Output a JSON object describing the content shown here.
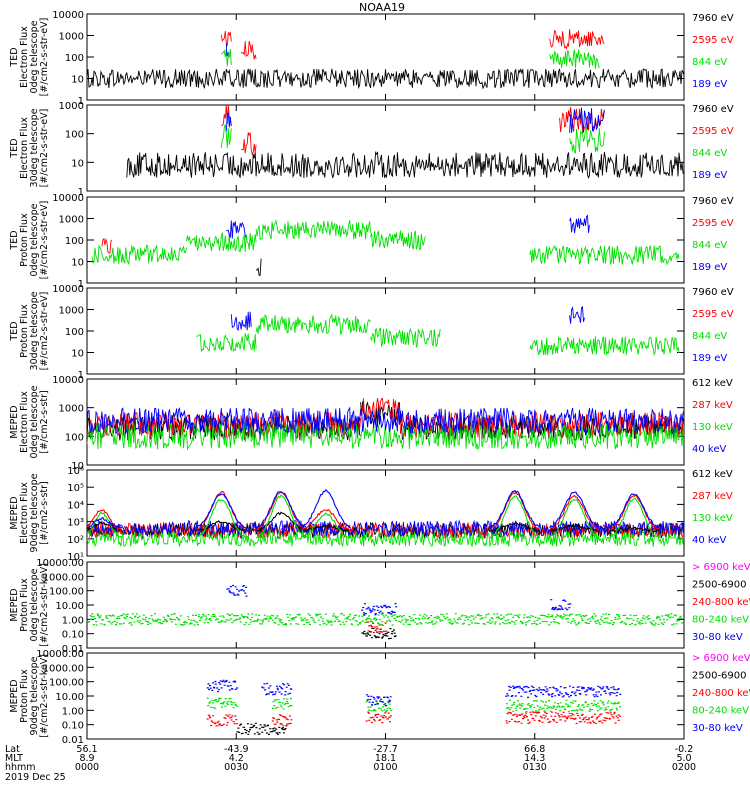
{
  "title": "NOAA19",
  "colors": {
    "black": "#000000",
    "red": "#ff0000",
    "green": "#00e000",
    "blue": "#0000ff",
    "magenta": "#ff00ff"
  },
  "xaxis": {
    "row_labels": [
      "Lat",
      "MLT",
      "hhmm"
    ],
    "date": "2019 Dec 25",
    "ticks": [
      {
        "lat": "56.1",
        "mlt": "8.9",
        "time": "0000"
      },
      {
        "lat": "-43.9",
        "mlt": "4.2",
        "time": "0030"
      },
      {
        "lat": "-27.7",
        "mlt": "18.1",
        "time": "0100"
      },
      {
        "lat": "66.8",
        "mlt": "14.3",
        "time": "0130"
      },
      {
        "lat": "-0.2",
        "mlt": "5.0",
        "time": "0200"
      }
    ],
    "time_range_minutes": [
      0,
      120
    ]
  },
  "chart_data": [
    {
      "type": "line",
      "ylabel": [
        "TED",
        "Electron Flux",
        "0deg telescope",
        "[#/cm2-s-str-eV]"
      ],
      "yscale": "log",
      "ylim": [
        1,
        10000
      ],
      "yticks": [
        "1",
        "10",
        "100",
        "1000",
        "10000"
      ],
      "series": [
        {
          "name": "7960 eV",
          "color": "black",
          "segments": [
            {
              "from": 0,
              "to": 120,
              "level": 10
            }
          ]
        },
        {
          "name": "2595 eV",
          "color": "red",
          "segments": [
            {
              "from": 27,
              "to": 29,
              "level": 800
            },
            {
              "from": 31,
              "to": 34,
              "level": 200
            },
            {
              "from": 93,
              "to": 104,
              "level": 700
            }
          ]
        },
        {
          "name": "844 eV",
          "color": "green",
          "segments": [
            {
              "from": 27,
              "to": 29,
              "level": 100
            },
            {
              "from": 93,
              "to": 103,
              "level": 80
            }
          ]
        },
        {
          "name": "189 eV",
          "color": "blue",
          "segments": [
            {
              "from": 28,
              "to": 28.5,
              "level": 300
            }
          ]
        }
      ]
    },
    {
      "type": "line",
      "ylabel": [
        "TED",
        "Electron Flux",
        "30deg telescope",
        "[#/cm2-s-str-eV]"
      ],
      "yscale": "log",
      "ylim": [
        1,
        1000
      ],
      "yticks": [
        "1",
        "10",
        "100",
        "1000"
      ],
      "series": [
        {
          "name": "7960 eV",
          "color": "black",
          "segments": [
            {
              "from": 8,
              "to": 120,
              "level": 8
            }
          ]
        },
        {
          "name": "2595 eV",
          "color": "red",
          "segments": [
            {
              "from": 27,
              "to": 29,
              "level": 500
            },
            {
              "from": 31,
              "to": 34,
              "level": 50
            },
            {
              "from": 95,
              "to": 104,
              "level": 300
            }
          ]
        },
        {
          "name": "844 eV",
          "color": "green",
          "segments": [
            {
              "from": 27,
              "to": 29,
              "level": 80
            },
            {
              "from": 97,
              "to": 104,
              "level": 60
            }
          ]
        },
        {
          "name": "189 eV",
          "color": "blue",
          "segments": [
            {
              "from": 28,
              "to": 29,
              "level": 300
            },
            {
              "from": 97,
              "to": 104,
              "level": 300
            }
          ]
        }
      ]
    },
    {
      "type": "line",
      "ylabel": [
        "TED",
        "Proton Flux",
        "0deg telescope",
        "[#/cm2-s-str-eV]"
      ],
      "yscale": "log",
      "ylim": [
        1,
        10000
      ],
      "yticks": [
        "1",
        "10",
        "100",
        "1000",
        "10000"
      ],
      "series": [
        {
          "name": "7960 eV",
          "color": "black",
          "segments": [
            {
              "from": 34,
              "to": 35,
              "level": 5
            }
          ]
        },
        {
          "name": "2595 eV",
          "color": "red",
          "segments": [
            {
              "from": 3,
              "to": 5,
              "level": 60
            }
          ]
        },
        {
          "name": "844 eV",
          "color": "green",
          "segments": [
            {
              "from": 1,
              "to": 20,
              "level": 20
            },
            {
              "from": 20,
              "to": 34,
              "level": 80
            },
            {
              "from": 34,
              "to": 57,
              "level": 300
            },
            {
              "from": 57,
              "to": 68,
              "level": 100
            },
            {
              "from": 89,
              "to": 119,
              "level": 20
            }
          ]
        },
        {
          "name": "189 eV",
          "color": "blue",
          "segments": [
            {
              "from": 28,
              "to": 32,
              "level": 300
            },
            {
              "from": 97,
              "to": 101,
              "level": 500
            }
          ]
        }
      ]
    },
    {
      "type": "line",
      "ylabel": [
        "TED",
        "Proton Flux",
        "30deg telescope",
        "[#/cm2-s-str-eV]"
      ],
      "yscale": "log",
      "ylim": [
        1,
        10000
      ],
      "yticks": [
        "1",
        "10",
        "100",
        "1000",
        "10000"
      ],
      "series": [
        {
          "name": "7960 eV",
          "color": "black",
          "segments": []
        },
        {
          "name": "2595 eV",
          "color": "red",
          "segments": []
        },
        {
          "name": "844 eV",
          "color": "green",
          "segments": [
            {
              "from": 22,
              "to": 34,
              "level": 30
            },
            {
              "from": 34,
              "to": 57,
              "level": 200
            },
            {
              "from": 57,
              "to": 71,
              "level": 50
            },
            {
              "from": 89,
              "to": 119,
              "level": 20
            }
          ]
        },
        {
          "name": "189 eV",
          "color": "blue",
          "segments": [
            {
              "from": 29,
              "to": 33,
              "level": 300
            },
            {
              "from": 97,
              "to": 100,
              "level": 500
            }
          ]
        }
      ]
    },
    {
      "type": "line",
      "ylabel": [
        "MEPED",
        "Electron Flux",
        "0deg telescope",
        "[#/cm2-s-str]"
      ],
      "yscale": "log",
      "ylim": [
        10,
        10000
      ],
      "yticks": [
        "10",
        "100",
        "1000",
        "10000"
      ],
      "series": [
        {
          "name": "612 keV",
          "color": "black",
          "segments": [
            {
              "from": 0,
              "to": 55,
              "level": 200
            },
            {
              "from": 55,
              "to": 63,
              "level": 600
            },
            {
              "from": 63,
              "to": 120,
              "level": 200
            }
          ]
        },
        {
          "name": "287 keV",
          "color": "red",
          "segments": [
            {
              "from": 0,
              "to": 55,
              "level": 250
            },
            {
              "from": 55,
              "to": 63,
              "level": 800
            },
            {
              "from": 63,
              "to": 120,
              "level": 250
            }
          ]
        },
        {
          "name": "130 keV",
          "color": "green",
          "segments": [
            {
              "from": 0,
              "to": 120,
              "level": 100
            }
          ]
        },
        {
          "name": "40 keV",
          "color": "blue",
          "segments": [
            {
              "from": 0,
              "to": 120,
              "level": 350
            }
          ]
        }
      ]
    },
    {
      "type": "line",
      "ylabel": [
        "MEPED",
        "Electron Flux",
        "90deg telescope",
        "[#/cm2-s-str]"
      ],
      "yscale": "log",
      "ylim": [
        10,
        1000000
      ],
      "yticks": [
        "10¹",
        "10²",
        "10³",
        "10⁴",
        "10⁵",
        "10⁶"
      ],
      "series": [
        {
          "name": "612 keV",
          "color": "black",
          "segments": [
            {
              "from": 0,
              "to": 120,
              "level": 300
            }
          ]
        },
        {
          "name": "287 keV",
          "color": "red",
          "segments": [
            {
              "from": 0,
              "to": 120,
              "level": 300
            }
          ]
        },
        {
          "name": "130 keV",
          "color": "green",
          "segments": [
            {
              "from": 0,
              "to": 120,
              "level": 100
            }
          ]
        },
        {
          "name": "40 keV",
          "color": "blue",
          "segments": [
            {
              "from": 0,
              "to": 120,
              "level": 400
            }
          ]
        }
      ],
      "peaks": [
        {
          "center": 3,
          "width": 4,
          "amps": {
            "black": 800,
            "red": 5000,
            "green": 3000,
            "blue": 1500
          }
        },
        {
          "center": 27,
          "width": 5,
          "amps": {
            "black": 1000,
            "red": 50000,
            "green": 20000,
            "blue": 40000
          }
        },
        {
          "center": 39,
          "width": 5,
          "amps": {
            "black": 3000,
            "red": 50000,
            "green": 30000,
            "blue": 60000
          }
        },
        {
          "center": 48,
          "width": 5,
          "amps": {
            "black": 600,
            "red": 5000,
            "green": 3000,
            "blue": 60000
          }
        },
        {
          "center": 86,
          "width": 5,
          "amps": {
            "black": 800,
            "red": 50000,
            "green": 30000,
            "blue": 60000
          }
        },
        {
          "center": 98,
          "width": 5,
          "amps": {
            "black": 600,
            "red": 30000,
            "green": 20000,
            "blue": 50000
          }
        },
        {
          "center": 110,
          "width": 5,
          "amps": {
            "black": 400,
            "red": 30000,
            "green": 20000,
            "blue": 40000
          }
        }
      ]
    },
    {
      "type": "scatter",
      "ylabel": [
        "MEPED",
        "Proton Flux",
        "0deg telescope",
        "[#/cm2-s-str-keV]"
      ],
      "yscale": "log",
      "ylim": [
        0.01,
        10000
      ],
      "yticks": [
        "0.01",
        "0.10",
        "1.00",
        "10.00",
        "100.00",
        "1000.00",
        "10000.00"
      ],
      "series": [
        {
          "name": "> 6900 keV",
          "color": "magenta",
          "segments": []
        },
        {
          "name": "2500-6900",
          "color": "black",
          "segments": [
            {
              "from": 55,
              "to": 62,
              "level": 0.1
            }
          ]
        },
        {
          "name": "240-800 keV",
          "color": "red",
          "segments": [
            {
              "from": 56,
              "to": 60,
              "level": 0.3
            }
          ]
        },
        {
          "name": "80-240 keV",
          "color": "green",
          "segments": [
            {
              "from": 0,
              "to": 120,
              "level": 1
            }
          ]
        },
        {
          "name": "30-80 keV",
          "color": "blue",
          "segments": [
            {
              "from": 28,
              "to": 32,
              "level": 100
            },
            {
              "from": 55,
              "to": 62,
              "level": 5
            },
            {
              "from": 93,
              "to": 97,
              "level": 10
            }
          ]
        }
      ]
    },
    {
      "type": "scatter",
      "ylabel": [
        "MEPED",
        "Proton Flux",
        "90deg telescope",
        "[#/cm2-s-str-keV]"
      ],
      "yscale": "log",
      "ylim": [
        0.01,
        10000
      ],
      "yticks": [
        "0.01",
        "0.10",
        "1.00",
        "10.00",
        "100.00",
        "1000.00",
        "10000.00"
      ],
      "series": [
        {
          "name": "> 6900 keV",
          "color": "magenta",
          "segments": []
        },
        {
          "name": "2500-6900",
          "color": "black",
          "segments": [
            {
              "from": 30,
              "to": 40,
              "level": 0.05
            }
          ]
        },
        {
          "name": "240-800 keV",
          "color": "red",
          "segments": [
            {
              "from": 24,
              "to": 30,
              "level": 0.2
            },
            {
              "from": 37,
              "to": 41,
              "level": 0.2
            },
            {
              "from": 56,
              "to": 61,
              "level": 0.3
            },
            {
              "from": 84,
              "to": 107,
              "level": 0.3
            }
          ]
        },
        {
          "name": "80-240 keV",
          "color": "green",
          "segments": [
            {
              "from": 24,
              "to": 30,
              "level": 3
            },
            {
              "from": 37,
              "to": 41,
              "level": 3
            },
            {
              "from": 56,
              "to": 61,
              "level": 2
            },
            {
              "from": 84,
              "to": 107,
              "level": 2
            }
          ]
        },
        {
          "name": "30-80 keV",
          "color": "blue",
          "segments": [
            {
              "from": 24,
              "to": 30,
              "level": 50
            },
            {
              "from": 35,
              "to": 41,
              "level": 30
            },
            {
              "from": 56,
              "to": 61,
              "level": 5
            },
            {
              "from": 84,
              "to": 107,
              "level": 20
            }
          ]
        }
      ]
    }
  ]
}
